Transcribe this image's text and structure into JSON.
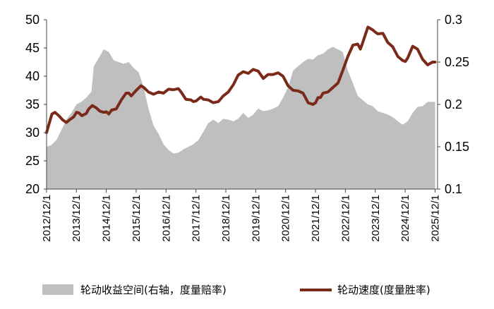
{
  "chart_data": {
    "type": "line",
    "x_tick_labels": [
      "2012/12/1",
      "2013/12/1",
      "2014/12/1",
      "2015/12/1",
      "2016/12/1",
      "2017/12/1",
      "2018/12/1",
      "2019/12/1",
      "2020/12/1",
      "2021/12/1",
      "2022/12/1",
      "2023/12/1",
      "2024/12/1",
      "2025/12/1"
    ],
    "left_axis": {
      "ylim": [
        20,
        50
      ],
      "ticks": [
        20,
        25,
        30,
        35,
        40,
        45,
        50
      ]
    },
    "right_axis": {
      "ylim": [
        0.1,
        0.3
      ],
      "ticks": [
        "0.1",
        "0.15",
        "0.2",
        "0.25",
        "0.3"
      ],
      "tick_values": [
        0.1,
        0.15,
        0.2,
        0.25,
        0.3
      ]
    },
    "x_range": [
      2012.92,
      2026.0
    ],
    "colors": {
      "area": "#bfbfbf",
      "line": "#7b2a1a"
    },
    "legend_position": "bottom",
    "series": [
      {
        "name": "轮动收益空间(右轴，度量赔率)",
        "kind": "area",
        "axis": "right",
        "points": [
          [
            2012.92,
            0.15
          ],
          [
            2013.08,
            0.152
          ],
          [
            2013.25,
            0.158
          ],
          [
            2013.42,
            0.17
          ],
          [
            2013.58,
            0.182
          ],
          [
            2013.75,
            0.19
          ],
          [
            2013.92,
            0.2
          ],
          [
            2014.08,
            0.203
          ],
          [
            2014.25,
            0.208
          ],
          [
            2014.42,
            0.215
          ],
          [
            2014.5,
            0.245
          ],
          [
            2014.67,
            0.255
          ],
          [
            2014.83,
            0.265
          ],
          [
            2015.0,
            0.262
          ],
          [
            2015.17,
            0.252
          ],
          [
            2015.33,
            0.25
          ],
          [
            2015.5,
            0.248
          ],
          [
            2015.67,
            0.25
          ],
          [
            2015.83,
            0.243
          ],
          [
            2016.0,
            0.238
          ],
          [
            2016.17,
            0.22
          ],
          [
            2016.33,
            0.195
          ],
          [
            2016.5,
            0.175
          ],
          [
            2016.67,
            0.165
          ],
          [
            2016.83,
            0.153
          ],
          [
            2017.0,
            0.146
          ],
          [
            2017.17,
            0.142
          ],
          [
            2017.33,
            0.143
          ],
          [
            2017.5,
            0.147
          ],
          [
            2017.67,
            0.15
          ],
          [
            2017.83,
            0.153
          ],
          [
            2018.0,
            0.158
          ],
          [
            2018.17,
            0.168
          ],
          [
            2018.33,
            0.178
          ],
          [
            2018.5,
            0.182
          ],
          [
            2018.67,
            0.178
          ],
          [
            2018.83,
            0.183
          ],
          [
            2019.0,
            0.182
          ],
          [
            2019.17,
            0.18
          ],
          [
            2019.33,
            0.183
          ],
          [
            2019.5,
            0.19
          ],
          [
            2019.67,
            0.184
          ],
          [
            2019.83,
            0.188
          ],
          [
            2020.0,
            0.195
          ],
          [
            2020.17,
            0.192
          ],
          [
            2020.33,
            0.193
          ],
          [
            2020.5,
            0.195
          ],
          [
            2020.67,
            0.198
          ],
          [
            2020.83,
            0.208
          ],
          [
            2021.0,
            0.22
          ],
          [
            2021.17,
            0.24
          ],
          [
            2021.33,
            0.245
          ],
          [
            2021.5,
            0.25
          ],
          [
            2021.67,
            0.254
          ],
          [
            2021.83,
            0.253
          ],
          [
            2022.0,
            0.258
          ],
          [
            2022.17,
            0.26
          ],
          [
            2022.33,
            0.265
          ],
          [
            2022.5,
            0.268
          ],
          [
            2022.67,
            0.265
          ],
          [
            2022.83,
            0.262
          ],
          [
            2023.0,
            0.24
          ],
          [
            2023.17,
            0.225
          ],
          [
            2023.33,
            0.21
          ],
          [
            2023.5,
            0.205
          ],
          [
            2023.67,
            0.2
          ],
          [
            2023.83,
            0.198
          ],
          [
            2024.0,
            0.192
          ],
          [
            2024.17,
            0.19
          ],
          [
            2024.33,
            0.188
          ],
          [
            2024.5,
            0.185
          ],
          [
            2024.67,
            0.18
          ],
          [
            2024.83,
            0.176
          ],
          [
            2025.0,
            0.18
          ],
          [
            2025.17,
            0.19
          ],
          [
            2025.33,
            0.197
          ],
          [
            2025.5,
            0.198
          ],
          [
            2025.67,
            0.203
          ],
          [
            2025.92,
            0.203
          ]
        ]
      },
      {
        "name": "轮动速度(度量胜率)",
        "kind": "line",
        "axis": "left",
        "points": [
          [
            2012.92,
            30.0
          ],
          [
            2013.0,
            31.5
          ],
          [
            2013.1,
            33.3
          ],
          [
            2013.2,
            33.6
          ],
          [
            2013.33,
            33.0
          ],
          [
            2013.45,
            32.3
          ],
          [
            2013.58,
            31.8
          ],
          [
            2013.7,
            32.3
          ],
          [
            2013.83,
            32.8
          ],
          [
            2013.92,
            33.6
          ],
          [
            2014.0,
            33.5
          ],
          [
            2014.1,
            33.0
          ],
          [
            2014.25,
            33.4
          ],
          [
            2014.33,
            34.2
          ],
          [
            2014.45,
            34.8
          ],
          [
            2014.58,
            34.4
          ],
          [
            2014.7,
            33.8
          ],
          [
            2014.83,
            33.6
          ],
          [
            2014.92,
            33.7
          ],
          [
            2015.0,
            33.3
          ],
          [
            2015.1,
            34.0
          ],
          [
            2015.25,
            34.2
          ],
          [
            2015.42,
            35.8
          ],
          [
            2015.58,
            37.0
          ],
          [
            2015.67,
            37.0
          ],
          [
            2015.75,
            36.5
          ],
          [
            2015.92,
            37.5
          ],
          [
            2016.08,
            38.3
          ],
          [
            2016.17,
            38.0
          ],
          [
            2016.33,
            37.2
          ],
          [
            2016.5,
            36.8
          ],
          [
            2016.67,
            37.2
          ],
          [
            2016.83,
            37.0
          ],
          [
            2017.0,
            37.7
          ],
          [
            2017.17,
            37.6
          ],
          [
            2017.33,
            37.8
          ],
          [
            2017.42,
            37.2
          ],
          [
            2017.58,
            35.9
          ],
          [
            2017.75,
            35.8
          ],
          [
            2017.83,
            35.5
          ],
          [
            2017.92,
            35.6
          ],
          [
            2018.08,
            36.3
          ],
          [
            2018.17,
            35.9
          ],
          [
            2018.33,
            35.8
          ],
          [
            2018.5,
            35.3
          ],
          [
            2018.67,
            35.5
          ],
          [
            2018.83,
            36.5
          ],
          [
            2019.0,
            37.2
          ],
          [
            2019.17,
            38.5
          ],
          [
            2019.33,
            40.2
          ],
          [
            2019.5,
            40.8
          ],
          [
            2019.67,
            40.5
          ],
          [
            2019.83,
            41.2
          ],
          [
            2020.0,
            40.9
          ],
          [
            2020.17,
            39.6
          ],
          [
            2020.33,
            40.3
          ],
          [
            2020.5,
            40.3
          ],
          [
            2020.67,
            40.6
          ],
          [
            2020.83,
            40.0
          ],
          [
            2021.0,
            38.3
          ],
          [
            2021.17,
            37.5
          ],
          [
            2021.33,
            37.4
          ],
          [
            2021.5,
            37.0
          ],
          [
            2021.67,
            35.3
          ],
          [
            2021.83,
            35.0
          ],
          [
            2021.92,
            35.3
          ],
          [
            2022.0,
            36.2
          ],
          [
            2022.08,
            36.2
          ],
          [
            2022.17,
            37.0
          ],
          [
            2022.33,
            37.2
          ],
          [
            2022.5,
            38.0
          ],
          [
            2022.67,
            38.8
          ],
          [
            2022.83,
            41.0
          ],
          [
            2023.0,
            43.5
          ],
          [
            2023.17,
            45.5
          ],
          [
            2023.33,
            45.7
          ],
          [
            2023.42,
            44.8
          ],
          [
            2023.5,
            46.0
          ],
          [
            2023.67,
            48.7
          ],
          [
            2023.83,
            48.2
          ],
          [
            2023.92,
            47.8
          ],
          [
            2024.0,
            47.5
          ],
          [
            2024.17,
            47.6
          ],
          [
            2024.33,
            46.0
          ],
          [
            2024.5,
            45.2
          ],
          [
            2024.67,
            43.5
          ],
          [
            2024.83,
            42.8
          ],
          [
            2024.92,
            42.6
          ],
          [
            2025.0,
            43.2
          ],
          [
            2025.17,
            45.3
          ],
          [
            2025.33,
            44.8
          ],
          [
            2025.5,
            43.0
          ],
          [
            2025.67,
            42.0
          ],
          [
            2025.83,
            42.5
          ],
          [
            2025.92,
            42.5
          ]
        ]
      }
    ]
  }
}
